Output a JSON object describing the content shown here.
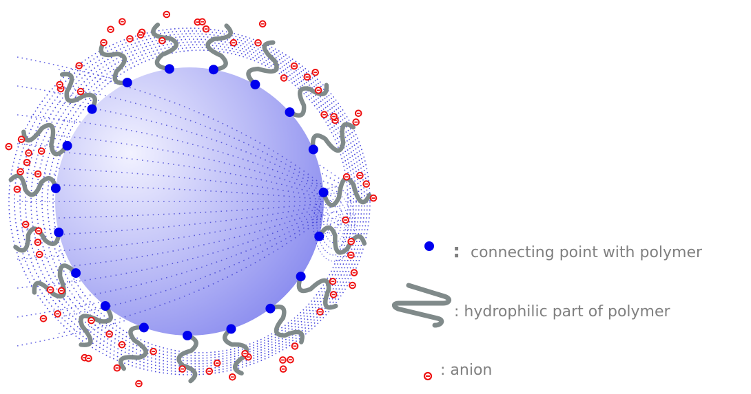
{
  "colors": {
    "core_light": "#eeeeff",
    "core_dark": "#8a8cf0",
    "connect_point": "#0000ee",
    "polymer": "#808a8a",
    "anion": "#ee1111",
    "dotted_shell": "#2a2ad8",
    "legend_text": "#808080"
  },
  "legend": {
    "connect": {
      "icon": "blue-dot-icon",
      "colon": ":",
      "label": "connecting point with polymer"
    },
    "polymer": {
      "icon": "polymer-chain-icon",
      "label": ": hydrophilic part of polymer"
    },
    "anion": {
      "icon": "anion-icon",
      "label": ": anion"
    }
  }
}
